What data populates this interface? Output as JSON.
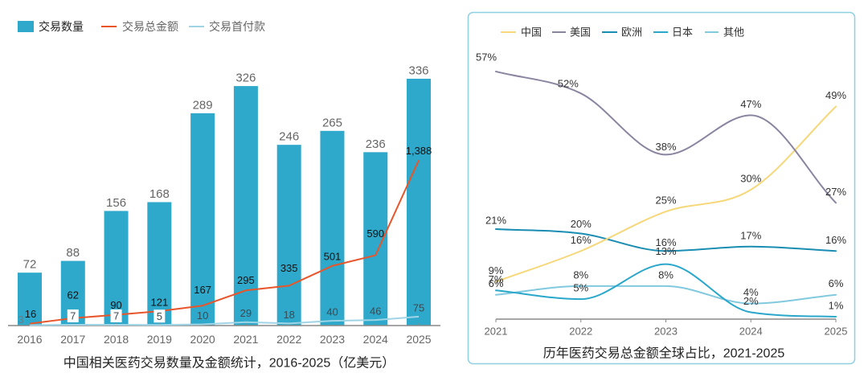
{
  "chart_data": [
    {
      "type": "bar",
      "title": "中国相关医药交易数量及金额统计，2016-2025（亿美元）",
      "xlabel": "",
      "ylabel": "",
      "categories": [
        "2016",
        "2017",
        "2018",
        "2019",
        "2020",
        "2021",
        "2022",
        "2023",
        "2024",
        "2025"
      ],
      "ylim": [
        0,
        360
      ],
      "y2lim": [
        0,
        2220
      ],
      "grid": false,
      "legend": "top-left",
      "series": [
        {
          "name": "交易数量",
          "type": "bar",
          "axis": "y",
          "color": "#2EA9CB",
          "values": [
            72,
            88,
            156,
            168,
            289,
            326,
            246,
            265,
            236,
            336
          ]
        },
        {
          "name": "交易总金额",
          "type": "line",
          "axis": "y2",
          "color": "#E8552A",
          "values": [
            16,
            62,
            90,
            121,
            167,
            295,
            335,
            501,
            590,
            1388
          ],
          "labels": [
            "16",
            "62",
            "90",
            "121",
            "167",
            "295",
            "335",
            "501",
            "590",
            "1,388"
          ]
        },
        {
          "name": "交易首付款",
          "type": "line",
          "axis": "y2",
          "color": "#9FD4E6",
          "values": [
            3,
            7,
            7,
            5,
            10,
            29,
            18,
            40,
            46,
            75
          ]
        }
      ]
    },
    {
      "type": "line",
      "title": "历年医药交易总金额全球占比，2021-2025",
      "xlabel": "",
      "ylabel": "",
      "categories": [
        "2021",
        "2022",
        "2023",
        "2024",
        "2025"
      ],
      "ylim": [
        0,
        60
      ],
      "unit": "%",
      "smooth": true,
      "grid": false,
      "legend": "top",
      "frame_color": "#8ECFE2",
      "series": [
        {
          "name": "中国",
          "color": "#F6D77A",
          "values": [
            9,
            16,
            25,
            30,
            49
          ]
        },
        {
          "name": "美国",
          "color": "#8B84A0",
          "values": [
            57,
            52,
            38,
            47,
            27
          ]
        },
        {
          "name": "欧洲",
          "color": "#1A8DB2",
          "values": [
            21,
            20,
            16,
            17,
            16
          ]
        },
        {
          "name": "日本",
          "color": "#2AA7CB",
          "values": [
            7,
            5,
            13,
            2,
            1
          ]
        },
        {
          "name": "其他",
          "color": "#80C9DE",
          "values": [
            6,
            8,
            8,
            4,
            6
          ]
        }
      ]
    }
  ]
}
